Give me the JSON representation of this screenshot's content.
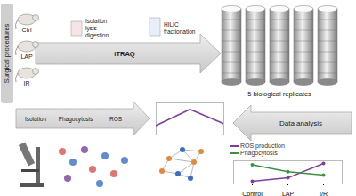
{
  "diagram": {
    "surgery_label": "Surgical procedures",
    "groups": [
      "Ctrl",
      "LAP",
      "IR"
    ],
    "proteomics_steps": [
      "Isolation",
      "lysis",
      "digestion"
    ],
    "labeling": "iTRAQ",
    "fractionation": [
      "HILIC",
      "fractionation"
    ],
    "replicates_label": "5 biological replicates",
    "analysis_label": "Data analysis",
    "functional_steps": [
      "Isolation",
      "Phagocytosis",
      "ROS"
    ]
  },
  "chart_data": [
    {
      "type": "line",
      "x": [
        1,
        2,
        3
      ],
      "xlim": [
        1,
        3
      ],
      "ylim": [
        0,
        1
      ],
      "tick_labels": false,
      "series": [
        {
          "color": "#7b3f9e",
          "values": [
            0.3,
            0.8,
            0.35
          ]
        }
      ]
    },
    {
      "type": "line",
      "categories": [
        "Control",
        "LAP",
        "I/R"
      ],
      "ylim": [
        0.8,
        2.5
      ],
      "tick_labels": "x",
      "legend": "top-left",
      "marker": "circle",
      "series": [
        {
          "name": "ROS production",
          "color": "#7b3f9e",
          "values": [
            1.0,
            1.25,
            2.3
          ]
        },
        {
          "name": "Phagocytosis",
          "color": "#3f8f3f",
          "values": [
            2.2,
            1.7,
            1.45
          ]
        }
      ]
    }
  ]
}
